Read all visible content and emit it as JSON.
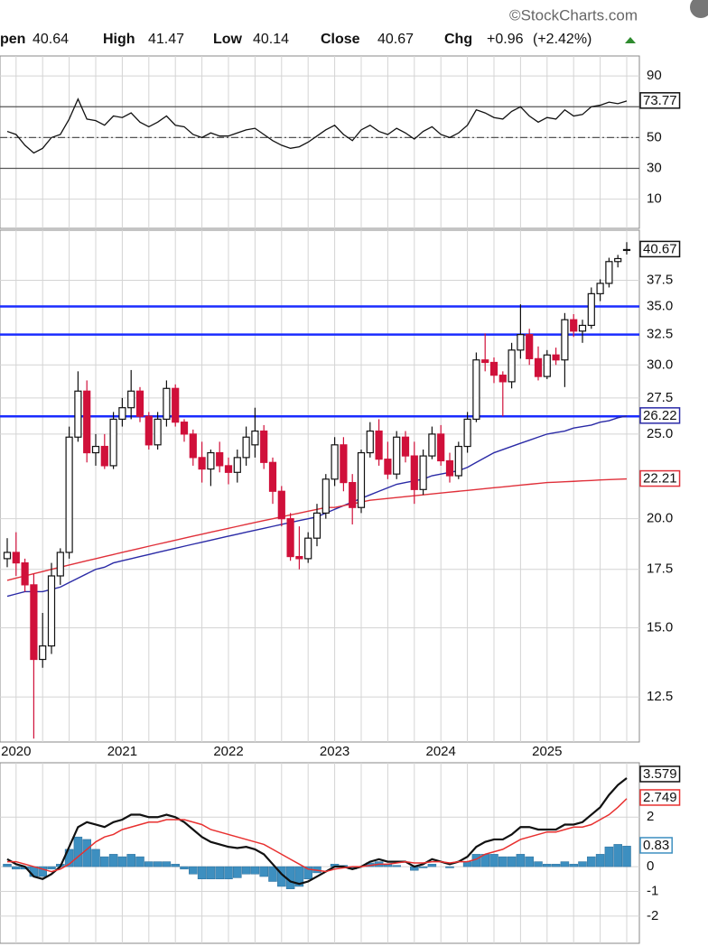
{
  "header": {
    "source": "©StockCharts.com",
    "labels": [
      "pen",
      "High",
      "Low",
      "Close",
      "Chg"
    ],
    "change": "+0.96",
    "change_pct": "(+2.42%)"
  },
  "chart_data": [
    {
      "type": "line",
      "ylim": [
        -9,
        103
      ],
      "yticks": [
        10,
        30,
        50,
        90
      ],
      "levels": [
        30,
        50,
        70
      ],
      "grid": true,
      "series": [
        {
          "color": "#111111",
          "values": [
            54,
            52,
            45,
            40,
            43,
            50,
            52,
            62,
            75,
            62,
            61,
            58,
            64,
            63,
            66,
            60,
            57,
            60,
            64,
            58,
            57,
            52,
            50,
            53,
            51,
            51,
            53,
            55,
            56,
            52,
            48,
            45,
            43,
            44,
            47,
            51,
            55,
            58,
            52,
            48,
            55,
            58,
            54,
            52,
            56,
            53,
            49,
            54,
            57,
            52,
            50,
            53,
            58,
            68,
            66,
            63,
            62,
            67,
            70,
            64,
            60,
            63,
            62,
            68,
            64,
            65,
            70,
            71,
            73,
            72,
            73.77
          ]
        }
      ]
    },
    {
      "type": "candlestick",
      "log_scale": true,
      "ylim": [
        11.1,
        42.8
      ],
      "grid": true,
      "yticks": [
        12.5,
        {
          "value": 15,
          "label": "15.0"
        },
        17.5,
        {
          "value": 20,
          "label": "20.0"
        },
        {
          "value": 25,
          "label": "25.0"
        },
        27.5,
        {
          "value": 30,
          "label": "30.0"
        },
        32.5,
        {
          "value": 35,
          "label": "35.0"
        },
        37.5
      ],
      "categories": [
        null,
        "2020",
        null,
        null,
        null,
        null,
        null,
        null,
        null,
        null,
        null,
        null,
        null,
        "2021",
        null,
        null,
        null,
        null,
        null,
        null,
        null,
        null,
        null,
        null,
        null,
        "2022",
        null,
        null,
        null,
        null,
        null,
        null,
        null,
        null,
        null,
        null,
        null,
        "2023",
        null,
        null,
        null,
        null,
        null,
        null,
        null,
        null,
        null,
        null,
        null,
        "2024",
        null,
        null,
        null,
        null,
        null,
        null,
        null,
        null,
        null,
        null,
        null,
        "2025",
        null,
        null,
        null,
        null,
        null,
        null,
        null,
        null,
        null
      ],
      "open": [
        18,
        18.3,
        17.8,
        16.8,
        13.8,
        14.3,
        17.2,
        18.3,
        24.8,
        28.0,
        23.8,
        24.2,
        23.0,
        26,
        26.8,
        28,
        26.2,
        24.3,
        26,
        28.2,
        25.8,
        25,
        23.5,
        22.8,
        23.8,
        23,
        22.6,
        23.5,
        24.3,
        25.2,
        23.2,
        21.5,
        20.0,
        18.1,
        18,
        19,
        20.3,
        22.2,
        24.3,
        22,
        20.6,
        23.8,
        25.2,
        23.4,
        22.5,
        24.8,
        23.6,
        21.6,
        23.6,
        25,
        23.3,
        22.4,
        24.2,
        26,
        30.4,
        30.2,
        29.2,
        28.7,
        31.2,
        32.5,
        30.5,
        29.1,
        30.8,
        30.4,
        33.8,
        32.8,
        33.3,
        36.2,
        37.2,
        39.4,
        40.64
      ],
      "high": [
        19,
        19.3,
        18,
        17.3,
        15.6,
        17.8,
        18.5,
        25.5,
        29.5,
        28.8,
        25,
        25,
        26.5,
        27.5,
        29.6,
        28.3,
        26.5,
        26.5,
        28.8,
        28.5,
        26,
        25.3,
        24.5,
        24,
        24.5,
        23.5,
        24,
        25.5,
        26.8,
        25.6,
        23.5,
        21.8,
        20.3,
        19.6,
        19.3,
        20.8,
        22.5,
        24.8,
        24.8,
        22.5,
        24,
        25.8,
        26,
        24.5,
        25.2,
        25.2,
        24.5,
        24,
        25.5,
        25.6,
        23.8,
        24.5,
        26.5,
        31,
        32.6,
        30.6,
        29.5,
        31.8,
        35.2,
        33,
        31.5,
        31.2,
        31.4,
        34.4,
        34.3,
        33.8,
        36.8,
        37.6,
        39.8,
        40.1,
        41.47
      ],
      "low": [
        17.6,
        17.2,
        16.5,
        11.2,
        13.5,
        14.0,
        16.8,
        18,
        24.5,
        23.2,
        23.0,
        22.8,
        22.8,
        25.5,
        26,
        25.8,
        24,
        24,
        25.5,
        25.5,
        24.5,
        23,
        22,
        21.8,
        22.6,
        21.9,
        22,
        23,
        23.5,
        22.8,
        20.8,
        19.6,
        17.9,
        17.5,
        17.8,
        18.6,
        20,
        21.8,
        21.5,
        19.7,
        20.3,
        23.5,
        23,
        22.2,
        22.2,
        23.2,
        20.8,
        21.3,
        23.4,
        23,
        22,
        22.2,
        23.8,
        25.8,
        29.5,
        28.6,
        26.2,
        28.2,
        30.5,
        30.0,
        28.8,
        28.9,
        30,
        28.3,
        32.3,
        31.8,
        33,
        35.5,
        36.8,
        38.8,
        40.14
      ],
      "close": [
        18.3,
        17.8,
        16.8,
        13.8,
        14.3,
        17.2,
        18.3,
        24.8,
        28.0,
        23.8,
        24.2,
        23.0,
        26.0,
        26.8,
        28.0,
        26.2,
        24.3,
        26,
        28.2,
        25.8,
        25.0,
        23.5,
        22.8,
        23.8,
        23,
        22.6,
        23.5,
        24.8,
        25.2,
        23.2,
        21.5,
        20.0,
        18.1,
        18.0,
        19,
        20.3,
        22.2,
        24.3,
        22.0,
        20.6,
        23.8,
        25.2,
        23.4,
        22.5,
        24.8,
        23.6,
        21.6,
        23.6,
        25.0,
        23.3,
        22.4,
        24.2,
        26.0,
        30.4,
        30.2,
        29.2,
        28.7,
        31.2,
        32.5,
        30.5,
        29.1,
        30.8,
        30.4,
        33.8,
        32.8,
        33.3,
        36.2,
        37.2,
        39.4,
        39.71,
        40.67
      ],
      "up_color": "#111111",
      "down_color": "#d0103a",
      "overlays": [
        {
          "color": "#2a2aa6",
          "values": [
            16.3,
            16.4,
            16.5,
            16.5,
            16.5,
            16.6,
            16.7,
            16.9,
            17.1,
            17.3,
            17.5,
            17.6,
            17.8,
            17.9,
            18.0,
            18.1,
            18.2,
            18.3,
            18.4,
            18.5,
            18.6,
            18.7,
            18.8,
            18.9,
            19.0,
            19.1,
            19.2,
            19.3,
            19.4,
            19.5,
            19.6,
            19.7,
            19.8,
            19.9,
            20.0,
            20.1,
            20.3,
            20.5,
            20.7,
            20.9,
            21.1,
            21.3,
            21.5,
            21.7,
            21.9,
            22.0,
            22.1,
            22.2,
            22.4,
            22.5,
            22.6,
            22.7,
            22.9,
            23.2,
            23.5,
            23.8,
            24.0,
            24.2,
            24.4,
            24.6,
            24.8,
            25.0,
            25.1,
            25.2,
            25.4,
            25.5,
            25.6,
            25.8,
            25.9,
            26.1,
            26.22
          ]
        },
        {
          "color": "#e0303a",
          "values": [
            17.0,
            17.1,
            17.2,
            17.3,
            17.4,
            17.5,
            17.6,
            17.7,
            17.8,
            17.9,
            18.0,
            18.1,
            18.2,
            18.3,
            18.4,
            18.5,
            18.6,
            18.7,
            18.8,
            18.9,
            19.0,
            19.1,
            19.2,
            19.3,
            19.4,
            19.5,
            19.6,
            19.7,
            19.8,
            19.9,
            20.0,
            20.1,
            20.2,
            20.3,
            20.4,
            20.5,
            20.6,
            20.6,
            20.7,
            20.8,
            20.9,
            21.0,
            21.05,
            21.1,
            21.15,
            21.2,
            21.25,
            21.3,
            21.35,
            21.4,
            21.45,
            21.5,
            21.55,
            21.6,
            21.65,
            21.7,
            21.75,
            21.8,
            21.85,
            21.9,
            21.95,
            22.0,
            22.02,
            22.05,
            22.07,
            22.1,
            22.12,
            22.15,
            22.17,
            22.19,
            22.21
          ]
        }
      ],
      "hlines": [
        35,
        32.5,
        26.2
      ],
      "hline_color": "#1a2cff"
    },
    {
      "type": "macd",
      "ylim": [
        -3.1,
        4.2
      ],
      "yticks": [
        -2,
        -1,
        0,
        2
      ],
      "grid": true,
      "series": [
        {
          "color": "#111111",
          "values": [
            0.3,
            0.1,
            0.0,
            -0.4,
            -0.5,
            -0.3,
            0.0,
            0.8,
            1.6,
            1.8,
            1.7,
            1.6,
            1.8,
            1.9,
            2.1,
            2.1,
            2.0,
            2.0,
            2.1,
            2.0,
            1.8,
            1.5,
            1.2,
            1.0,
            0.9,
            0.8,
            0.75,
            0.8,
            0.7,
            0.5,
            0.1,
            -0.3,
            -0.6,
            -0.7,
            -0.6,
            -0.4,
            -0.2,
            0.0,
            0.0,
            -0.1,
            0.0,
            0.2,
            0.3,
            0.2,
            0.2,
            0.2,
            0.0,
            0.1,
            0.3,
            0.2,
            0.1,
            0.2,
            0.4,
            0.8,
            1.0,
            1.1,
            1.1,
            1.3,
            1.6,
            1.6,
            1.5,
            1.5,
            1.5,
            1.7,
            1.7,
            1.8,
            2.1,
            2.4,
            2.9,
            3.3,
            3.579
          ]
        },
        {
          "color": "#e8302f",
          "values": [
            0.2,
            0.2,
            0.1,
            0.0,
            -0.1,
            -0.2,
            -0.1,
            0.1,
            0.4,
            0.7,
            1.0,
            1.2,
            1.3,
            1.5,
            1.6,
            1.7,
            1.8,
            1.8,
            1.9,
            1.9,
            1.9,
            1.8,
            1.7,
            1.5,
            1.4,
            1.3,
            1.2,
            1.1,
            1.0,
            0.9,
            0.7,
            0.5,
            0.3,
            0.1,
            -0.1,
            -0.15,
            -0.2,
            -0.1,
            -0.05,
            0.0,
            0.0,
            0.05,
            0.1,
            0.1,
            0.15,
            0.2,
            0.15,
            0.15,
            0.2,
            0.2,
            0.15,
            0.2,
            0.2,
            0.3,
            0.5,
            0.6,
            0.7,
            0.9,
            1.1,
            1.2,
            1.3,
            1.4,
            1.4,
            1.5,
            1.6,
            1.6,
            1.7,
            1.9,
            2.1,
            2.4,
            2.749
          ]
        },
        {
          "type": "histogram",
          "color": "#3d8fc0",
          "values": [
            0.1,
            -0.1,
            -0.1,
            -0.4,
            -0.4,
            -0.1,
            0.1,
            0.7,
            1.2,
            1.1,
            0.7,
            0.4,
            0.5,
            0.4,
            0.5,
            0.4,
            0.2,
            0.2,
            0.2,
            0.1,
            -0.1,
            -0.3,
            -0.5,
            -0.5,
            -0.5,
            -0.5,
            -0.45,
            -0.3,
            -0.3,
            -0.4,
            -0.6,
            -0.8,
            -0.9,
            -0.8,
            -0.5,
            -0.25,
            0.0,
            0.1,
            0.05,
            -0.1,
            0.0,
            0.15,
            0.2,
            0.1,
            0.05,
            0.0,
            -0.15,
            -0.05,
            0.1,
            0.0,
            -0.05,
            0.0,
            0.2,
            0.5,
            0.5,
            0.5,
            0.4,
            0.4,
            0.5,
            0.4,
            0.2,
            0.1,
            0.1,
            0.2,
            0.1,
            0.2,
            0.4,
            0.5,
            0.8,
            0.9,
            0.83
          ]
        }
      ]
    }
  ]
}
